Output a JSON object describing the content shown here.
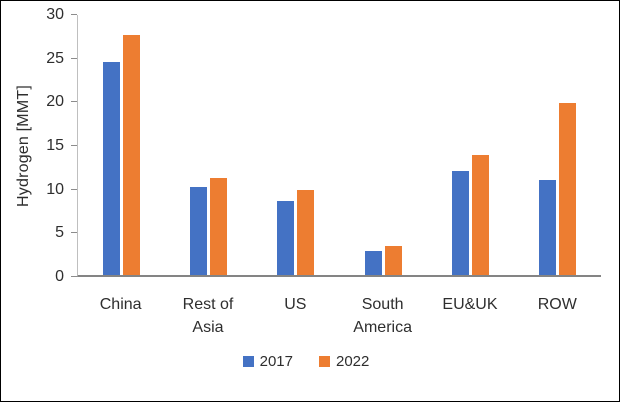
{
  "chart_data": {
    "type": "bar",
    "title": "",
    "xlabel": "",
    "ylabel": "Hydrogen [MMT]",
    "ylim": [
      0,
      30
    ],
    "yticks": [
      0,
      5,
      10,
      15,
      20,
      25,
      30
    ],
    "grid": false,
    "legend_position": "bottom",
    "categories": [
      "China",
      "Rest of Asia",
      "US",
      "South America",
      "EU&UK",
      "ROW"
    ],
    "series": [
      {
        "name": "2017",
        "color": "#4472C4",
        "values": [
          24.6,
          10.1,
          8.5,
          2.8,
          12.0,
          11.0
        ]
      },
      {
        "name": "2022",
        "color": "#ED7D31",
        "values": [
          27.7,
          11.2,
          9.8,
          3.3,
          13.9,
          19.8
        ]
      }
    ],
    "axis_color": "#848484",
    "text_color": "#2e2e2e"
  }
}
